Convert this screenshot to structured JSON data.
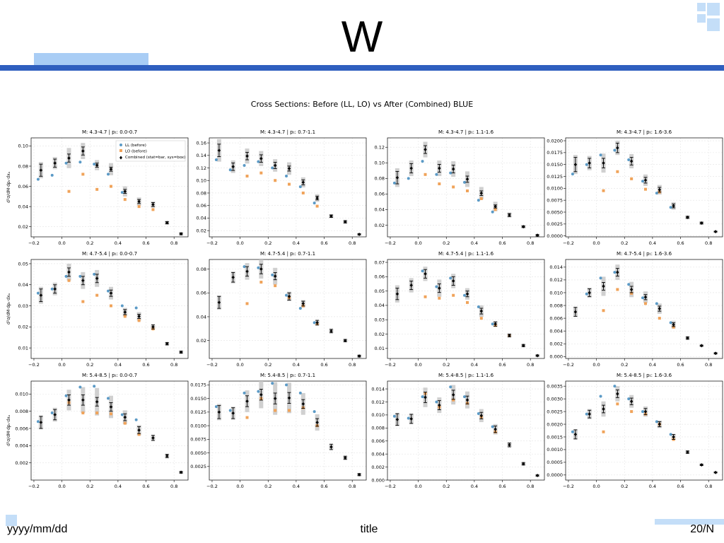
{
  "slide": {
    "title": "W",
    "footer_left": "yyyy/mm/dd",
    "footer_center": "title",
    "footer_right": "20/N"
  },
  "colors": {
    "accent": "#2f5fbf",
    "accent_light": "#a9cdf5",
    "ll": "#5b9ac6",
    "lo": "#f0a35a",
    "combined": "#000000",
    "sys_box": "#c8c8c8"
  },
  "chart_data": {
    "type": "scatter",
    "title": "Cross Sections: Before (LL, LO) vs After (Combined) BLUE",
    "legend": {
      "placement": "top-right",
      "entries": [
        "LL (before)",
        "LO (before)",
        "Combined (stat=bar, sys=box)"
      ]
    },
    "ylabels": [
      "d²σ/dM·dpₜ·dxₐ",
      "d²σ/dM·dpₜ·dxₐ",
      "d²σ/dM·dpₜ·dxₐ"
    ],
    "x": [
      -0.15,
      -0.05,
      0.05,
      0.15,
      0.25,
      0.35,
      0.45,
      0.55,
      0.65,
      0.75,
      0.85
    ],
    "xticks": [
      -0.2,
      0.0,
      0.2,
      0.4,
      0.6,
      0.8
    ],
    "xticklabels": [
      "−0.2",
      "0.0",
      "0.2",
      "0.4",
      "0.6",
      "0.8"
    ],
    "panels": [
      {
        "title": "M: 4.3-4.7 | pₜ: 0.0-0.7",
        "ylim": [
          0.01,
          0.108
        ],
        "yticks": [
          0.02,
          0.04,
          0.06,
          0.08,
          0.1
        ],
        "yticklabels": [
          "0.02",
          "0.04",
          "0.06",
          "0.08",
          "0.10"
        ],
        "legend": true,
        "ll": [
          0.067,
          0.071,
          0.083,
          0.084,
          0.082,
          0.072,
          0.054,
          null,
          null,
          null,
          null
        ],
        "lo": [
          null,
          null,
          0.055,
          0.072,
          0.057,
          0.06,
          0.047,
          0.04,
          0.037,
          null,
          null
        ],
        "comb": [
          0.076,
          0.083,
          0.088,
          0.095,
          0.081,
          0.077,
          0.055,
          0.045,
          0.042,
          0.024,
          0.013
        ],
        "stat": [
          0.006,
          0.004,
          0.004,
          0.004,
          0.002,
          0.002,
          0.002,
          0.002,
          0.002,
          0.001,
          0.001
        ],
        "sys": [
          0.008,
          0.006,
          0.01,
          0.008,
          0.005,
          0.006,
          0.005,
          0.004,
          0.003,
          0.002,
          0.001
        ]
      },
      {
        "title": "M: 4.3-4.7 | pₜ: 0.7-1.1",
        "ylim": [
          0.01,
          0.168
        ],
        "yticks": [
          0.02,
          0.04,
          0.06,
          0.08,
          0.1,
          0.12,
          0.14,
          0.16
        ],
        "yticklabels": [
          "0.02",
          "0.04",
          "0.06",
          "0.08",
          "0.10",
          "0.12",
          "0.14",
          "0.16"
        ],
        "legend": false,
        "ll": [
          0.133,
          0.117,
          0.124,
          0.13,
          0.12,
          0.107,
          0.09,
          0.064,
          null,
          null,
          null
        ],
        "lo": [
          null,
          null,
          0.107,
          0.112,
          0.1,
          0.094,
          0.08,
          0.059,
          null,
          null,
          null
        ],
        "comb": [
          0.148,
          0.122,
          0.139,
          0.135,
          0.124,
          0.119,
          0.097,
          0.072,
          0.043,
          0.034,
          0.014
        ],
        "stat": [
          0.01,
          0.006,
          0.006,
          0.006,
          0.005,
          0.004,
          0.004,
          0.003,
          0.002,
          0.002,
          0.001
        ],
        "sys": [
          0.018,
          0.01,
          0.012,
          0.012,
          0.01,
          0.01,
          0.008,
          0.006,
          0.003,
          0.002,
          0.001
        ]
      },
      {
        "title": "M: 4.3-4.7 | pₜ: 1.1-1.6",
        "ylim": [
          0.005,
          0.132
        ],
        "yticks": [
          0.02,
          0.04,
          0.06,
          0.08,
          0.1,
          0.12
        ],
        "yticklabels": [
          "0.02",
          "0.04",
          "0.06",
          "0.08",
          "0.10",
          "0.12"
        ],
        "legend": false,
        "ll": [
          0.074,
          0.08,
          0.102,
          0.085,
          0.087,
          0.075,
          0.052,
          0.037,
          null,
          null,
          null
        ],
        "lo": [
          null,
          null,
          0.085,
          0.073,
          0.069,
          0.064,
          0.054,
          0.04,
          null,
          null,
          null
        ],
        "comb": [
          0.081,
          0.093,
          0.117,
          0.093,
          0.092,
          0.079,
          0.061,
          0.044,
          0.033,
          0.018,
          0.007
        ],
        "stat": [
          0.008,
          0.006,
          0.005,
          0.005,
          0.005,
          0.004,
          0.003,
          0.002,
          0.002,
          0.001,
          0.001
        ],
        "sys": [
          0.012,
          0.01,
          0.01,
          0.01,
          0.01,
          0.01,
          0.008,
          0.006,
          0.003,
          0.002,
          0.001
        ]
      },
      {
        "title": "M: 4.3-4.7 | pₜ: 1.6-3.6",
        "ylim": [
          -0.0002,
          0.0206
        ],
        "yticks": [
          0.0,
          0.0025,
          0.005,
          0.0075,
          0.01,
          0.0125,
          0.015,
          0.0175,
          0.02
        ],
        "yticklabels": [
          "0.0000",
          "0.0025",
          "0.0050",
          "0.0075",
          "0.0100",
          "0.0125",
          "0.0150",
          "0.0175",
          "0.0200"
        ],
        "legend": false,
        "ll": [
          0.013,
          0.015,
          0.017,
          0.018,
          0.016,
          0.0115,
          0.009,
          0.006,
          null,
          null,
          null
        ],
        "lo": [
          null,
          null,
          0.0095,
          0.0135,
          0.012,
          0.0098,
          0.0092,
          null,
          null,
          null,
          null
        ],
        "comb": [
          0.015,
          0.0153,
          0.0153,
          0.0185,
          0.0157,
          0.0117,
          0.0097,
          0.0063,
          0.0039,
          0.0027,
          0.0009
        ],
        "stat": [
          0.0015,
          0.001,
          0.001,
          0.001,
          0.0008,
          0.0006,
          0.0005,
          0.0004,
          0.0002,
          0.0002,
          0.0001
        ],
        "sys": [
          0.002,
          0.0015,
          0.002,
          0.0015,
          0.0015,
          0.0012,
          0.001,
          0.0008,
          0.0004,
          0.0003,
          0.0001
        ]
      },
      {
        "title": "M: 4.7-5.4 | pₜ: 0.0-0.7",
        "ylim": [
          0.005,
          0.052
        ],
        "yticks": [
          0.01,
          0.02,
          0.03,
          0.04,
          0.05
        ],
        "yticklabels": [
          "0.01",
          "0.02",
          "0.03",
          "0.04",
          "0.05"
        ],
        "legend": false,
        "ll": [
          0.036,
          0.038,
          0.044,
          0.044,
          0.045,
          0.037,
          0.03,
          0.029,
          null,
          null,
          null
        ],
        "lo": [
          null,
          null,
          0.042,
          0.032,
          0.035,
          0.03,
          0.025,
          0.023,
          0.019,
          null,
          null
        ],
        "comb": [
          0.035,
          0.038,
          0.046,
          0.042,
          0.043,
          0.036,
          0.027,
          0.025,
          0.02,
          0.012,
          0.008
        ],
        "stat": [
          0.003,
          0.002,
          0.002,
          0.002,
          0.002,
          0.0015,
          0.0012,
          0.001,
          0.001,
          0.0006,
          0.0005
        ],
        "sys": [
          0.004,
          0.003,
          0.004,
          0.004,
          0.004,
          0.003,
          0.002,
          0.002,
          0.001,
          0.0006,
          0.0005
        ]
      },
      {
        "title": "M: 4.7-5.4 | pₜ: 0.7-1.1",
        "ylim": [
          0.005,
          0.088
        ],
        "yticks": [
          0.02,
          0.04,
          0.06,
          0.08
        ],
        "yticklabels": [
          "0.02",
          "0.04",
          "0.06",
          "0.08"
        ],
        "legend": false,
        "ll": [
          null,
          null,
          0.082,
          0.081,
          0.075,
          0.058,
          0.047,
          0.035,
          null,
          null,
          null
        ],
        "lo": [
          null,
          null,
          0.051,
          0.069,
          0.066,
          0.056,
          0.049,
          0.034,
          null,
          null,
          null
        ],
        "comb": [
          0.052,
          0.073,
          0.078,
          0.08,
          0.074,
          0.057,
          0.051,
          0.035,
          0.028,
          0.02,
          0.007
        ],
        "stat": [
          0.005,
          0.004,
          0.004,
          0.004,
          0.003,
          0.003,
          0.002,
          0.002,
          0.0015,
          0.001,
          0.0008
        ],
        "sys": [
          0.006,
          0.005,
          0.007,
          0.008,
          0.007,
          0.004,
          0.003,
          0.002,
          0.0015,
          0.001,
          0.0008
        ]
      },
      {
        "title": "M: 4.7-5.4 | pₜ: 1.1-1.6",
        "ylim": [
          0.003,
          0.072
        ],
        "yticks": [
          0.01,
          0.02,
          0.03,
          0.04,
          0.05,
          0.06,
          0.07
        ],
        "yticklabels": [
          "0.01",
          "0.02",
          "0.03",
          "0.04",
          "0.05",
          "0.06",
          "0.07"
        ],
        "legend": false,
        "ll": [
          null,
          null,
          0.064,
          0.053,
          0.059,
          0.047,
          0.039,
          0.027,
          null,
          null,
          null
        ],
        "lo": [
          null,
          null,
          0.046,
          0.045,
          0.047,
          0.042,
          0.031,
          0.026,
          0.019,
          null,
          null
        ],
        "comb": [
          0.048,
          0.054,
          0.062,
          0.052,
          0.057,
          0.048,
          0.036,
          0.027,
          0.019,
          0.012,
          0.005
        ],
        "stat": [
          0.004,
          0.003,
          0.003,
          0.003,
          0.003,
          0.002,
          0.002,
          0.0015,
          0.001,
          0.0008,
          0.0005
        ],
        "sys": [
          0.006,
          0.005,
          0.005,
          0.006,
          0.005,
          0.004,
          0.004,
          0.002,
          0.001,
          0.0008,
          0.0005
        ]
      },
      {
        "title": "M: 4.7-5.4 | pₜ: 1.6-3.6",
        "ylim": [
          -0.0003,
          0.0152
        ],
        "yticks": [
          0.0,
          0.002,
          0.004,
          0.006,
          0.008,
          0.01,
          0.012,
          0.014
        ],
        "yticklabels": [
          "0.000",
          "0.002",
          "0.004",
          "0.006",
          "0.008",
          "0.010",
          "0.012",
          "0.014"
        ],
        "legend": false,
        "ll": [
          null,
          0.0098,
          0.0123,
          0.0132,
          0.0113,
          0.0092,
          0.0083,
          0.0053,
          null,
          null,
          null
        ],
        "lo": [
          null,
          null,
          0.0072,
          0.0105,
          0.0099,
          0.0083,
          0.006,
          0.0046,
          null,
          null,
          null
        ],
        "comb": [
          0.007,
          0.01,
          0.011,
          0.0132,
          0.0105,
          0.0093,
          0.0075,
          0.005,
          0.0029,
          0.0017,
          0.0005
        ],
        "stat": [
          0.0007,
          0.0006,
          0.0006,
          0.0006,
          0.0005,
          0.0004,
          0.0004,
          0.0003,
          0.0002,
          0.0001,
          0.0001
        ],
        "sys": [
          0.0008,
          0.0008,
          0.0015,
          0.0012,
          0.0012,
          0.0009,
          0.0008,
          0.0006,
          0.0002,
          0.0001,
          0.0001
        ]
      },
      {
        "title": "M: 5.4-8.5 | pₜ: 0.0-0.7",
        "ylim": [
          0.0,
          0.0115
        ],
        "yticks": [
          0.002,
          0.004,
          0.006,
          0.008,
          0.01
        ],
        "yticklabels": [
          "0.002",
          "0.004",
          "0.006",
          "0.008",
          "0.010"
        ],
        "legend": false,
        "ll": [
          0.0068,
          0.0078,
          0.0098,
          0.0108,
          0.0109,
          0.0095,
          0.0076,
          0.007,
          null,
          null,
          null
        ],
        "lo": [
          null,
          null,
          0.009,
          0.0078,
          0.0078,
          0.0077,
          0.0066,
          0.0053,
          null,
          null,
          null
        ],
        "comb": [
          0.0067,
          0.0076,
          0.0093,
          0.0093,
          0.0091,
          0.0085,
          0.0073,
          0.0058,
          0.0049,
          0.0028,
          0.0009
        ],
        "stat": [
          0.0007,
          0.0006,
          0.0006,
          0.0006,
          0.0005,
          0.0005,
          0.0004,
          0.0004,
          0.0003,
          0.0002,
          0.0001
        ],
        "sys": [
          0.0008,
          0.0008,
          0.0012,
          0.0015,
          0.0016,
          0.0013,
          0.0008,
          0.0006,
          0.0003,
          0.0002,
          0.0001
        ]
      },
      {
        "title": "M: 5.4-8.5 | pₜ: 0.7-1.1",
        "ylim": [
          0.0,
          0.0182
        ],
        "yticks": [
          0.0025,
          0.005,
          0.0075,
          0.01,
          0.0125,
          0.015,
          0.0175
        ],
        "yticklabels": [
          "0.0025",
          "0.0050",
          "0.0075",
          "0.0100",
          "0.0125",
          "0.0150",
          "0.0175"
        ],
        "legend": false,
        "ll": [
          0.0135,
          0.0128,
          0.016,
          0.0163,
          0.0178,
          0.0175,
          0.016,
          0.0126,
          null,
          null,
          null
        ],
        "lo": [
          null,
          null,
          0.0115,
          0.015,
          0.0128,
          0.0128,
          0.0133,
          0.01,
          null,
          null,
          null
        ],
        "comb": [
          0.0125,
          0.0123,
          0.0145,
          0.0157,
          0.015,
          0.0151,
          0.014,
          0.0106,
          0.0061,
          0.0041,
          0.001
        ],
        "stat": [
          0.0012,
          0.001,
          0.001,
          0.001,
          0.001,
          0.001,
          0.0008,
          0.0007,
          0.0005,
          0.0003,
          0.0002
        ],
        "sys": [
          0.0015,
          0.0012,
          0.002,
          0.0025,
          0.003,
          0.0028,
          0.002,
          0.0015,
          0.0005,
          0.0003,
          0.0002
        ]
      },
      {
        "title": "M: 5.4-8.5 | pₜ: 1.1-1.6",
        "ylim": [
          0.0,
          0.0152
        ],
        "yticks": [
          0.0,
          0.002,
          0.004,
          0.006,
          0.008,
          0.01,
          0.012,
          0.014
        ],
        "yticklabels": [
          "0.000",
          "0.002",
          "0.004",
          "0.006",
          "0.008",
          "0.010",
          "0.012",
          "0.014"
        ],
        "legend": false,
        "ll": [
          0.0098,
          0.0095,
          0.0128,
          0.012,
          0.0143,
          0.0128,
          0.0102,
          0.0082,
          null,
          null,
          null
        ],
        "lo": [
          null,
          null,
          0.0133,
          0.0112,
          0.0123,
          0.0118,
          0.0097,
          0.0074,
          null,
          null,
          null
        ],
        "comb": [
          0.0093,
          0.0094,
          0.0127,
          0.0115,
          0.0131,
          0.0123,
          0.0099,
          0.0078,
          0.0054,
          0.0025,
          0.0007
        ],
        "stat": [
          0.0009,
          0.0007,
          0.0008,
          0.0007,
          0.0007,
          0.0006,
          0.0005,
          0.0005,
          0.0003,
          0.0002,
          0.0001
        ],
        "sys": [
          0.001,
          0.0008,
          0.0015,
          0.0012,
          0.0015,
          0.0013,
          0.001,
          0.0008,
          0.0003,
          0.0002,
          0.0001
        ]
      },
      {
        "title": "M: 5.4-8.5 | pₜ: 1.6-3.6",
        "ylim": [
          -0.0002,
          0.0037
        ],
        "yticks": [
          0.0,
          0.0005,
          0.001,
          0.0015,
          0.002,
          0.0025,
          0.003,
          0.0035
        ],
        "yticklabels": [
          "0.0000",
          "0.0005",
          "0.0010",
          "0.0015",
          "0.0020",
          "0.0025",
          "0.0030",
          "0.0035"
        ],
        "legend": false,
        "ll": [
          0.0017,
          0.0024,
          0.0031,
          0.0035,
          0.003,
          0.0025,
          0.0021,
          0.0016,
          null,
          null,
          null
        ],
        "lo": [
          null,
          null,
          0.0017,
          0.0028,
          0.0025,
          0.0024,
          0.002,
          0.0014,
          null,
          null,
          null
        ],
        "comb": [
          0.0016,
          0.0024,
          0.0026,
          0.0032,
          0.0029,
          0.0025,
          0.002,
          0.0015,
          0.0009,
          0.0004,
          0.0001
        ],
        "stat": [
          0.00018,
          0.00015,
          0.00015,
          0.00015,
          0.00013,
          0.00012,
          0.0001,
          0.0001,
          5e-05,
          3e-05,
          2e-05
        ],
        "sys": [
          0.0002,
          0.0002,
          0.0003,
          0.0003,
          0.00025,
          0.0002,
          0.00015,
          0.0001,
          5e-05,
          3e-05,
          2e-05
        ]
      }
    ]
  }
}
